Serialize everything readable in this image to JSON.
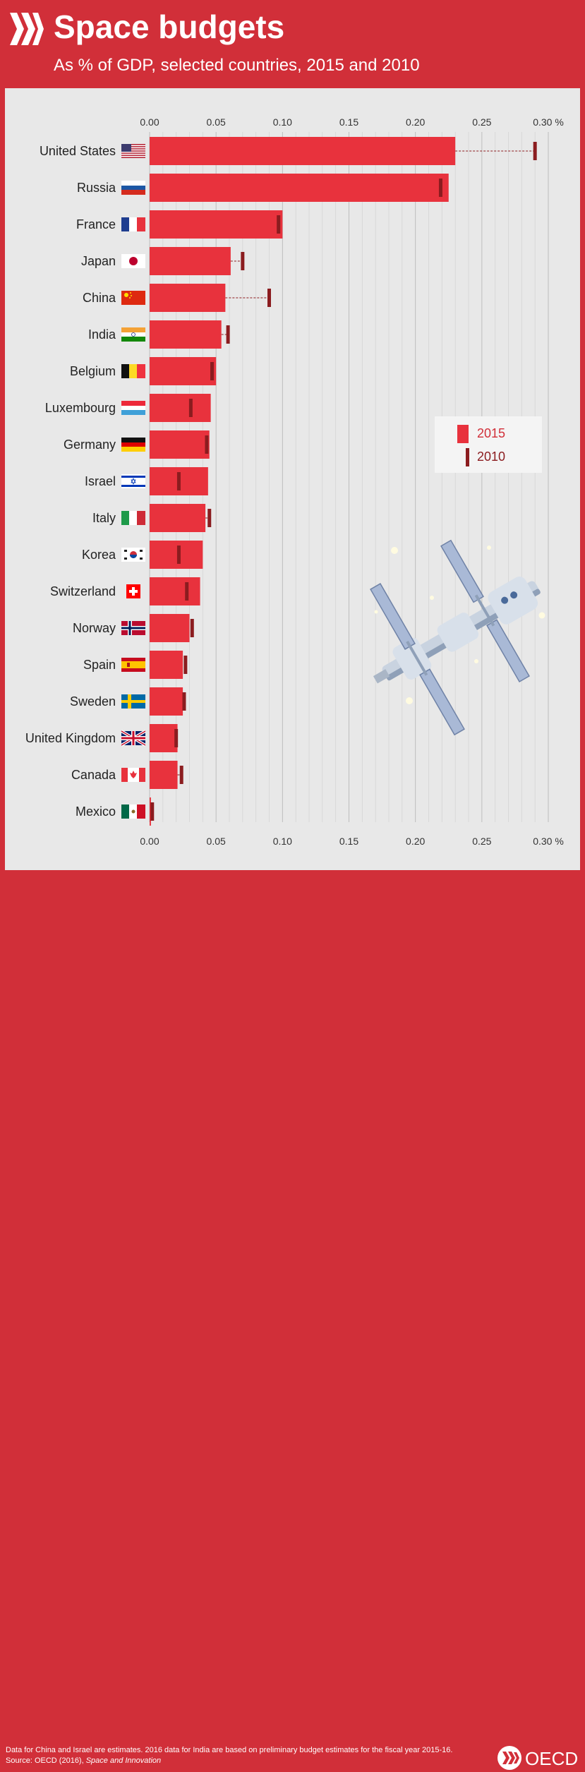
{
  "header": {
    "title": "Space budgets",
    "subtitle": "As % of GDP, selected countries, 2015 and 2010"
  },
  "colors": {
    "brand_red": "#d12f39",
    "bar_2015": "#e8323d",
    "marker_2010": "#8b1c1f",
    "panel_bg": "#e8e8e8"
  },
  "legend": {
    "item_2015": "2015",
    "item_2010": "2010"
  },
  "footer": {
    "note_line1": "Data for China and Israel are estimates. 2016 data for India are based on preliminary budget estimates for the fiscal year 2015-16.",
    "source_prefix": "Source: OECD (2016), ",
    "source_title": "Space and Innovation",
    "logo_text": "OECD"
  },
  "chart_data": {
    "type": "bar",
    "orientation": "horizontal",
    "title": "Space budgets",
    "subtitle": "As % of GDP, selected countries, 2015 and 2010",
    "tick_labels": [
      "0.00",
      "0.05",
      "0.10",
      "0.15",
      "0.20",
      "0.25",
      "0.30 %"
    ],
    "xlim": [
      0,
      0.3
    ],
    "grid": true,
    "legend_position": "right",
    "categories": [
      "United States",
      "Russia",
      "France",
      "Japan",
      "China",
      "India",
      "Belgium",
      "Luxembourg",
      "Germany",
      "Israel",
      "Italy",
      "Korea",
      "Switzerland",
      "Norway",
      "Spain",
      "Sweden",
      "United Kingdom",
      "Canada",
      "Mexico"
    ],
    "series": [
      {
        "name": "2015",
        "values": [
          0.23,
          0.225,
          0.1,
          0.061,
          0.057,
          0.054,
          0.05,
          0.046,
          0.045,
          0.044,
          0.042,
          0.04,
          0.038,
          0.03,
          0.025,
          0.025,
          0.021,
          0.021,
          0.001
        ]
      },
      {
        "name": "2010",
        "values": [
          0.29,
          0.219,
          0.097,
          0.07,
          0.09,
          0.059,
          0.047,
          0.031,
          0.043,
          0.022,
          0.045,
          0.022,
          0.028,
          0.032,
          0.027,
          0.026,
          0.02,
          0.024,
          0.002
        ]
      }
    ],
    "flags": [
      "us-flag-icon",
      "russia-flag-icon",
      "france-flag-icon",
      "japan-flag-icon",
      "china-flag-icon",
      "india-flag-icon",
      "belgium-flag-icon",
      "luxembourg-flag-icon",
      "germany-flag-icon",
      "israel-flag-icon",
      "italy-flag-icon",
      "korea-flag-icon",
      "switzerland-flag-icon",
      "norway-flag-icon",
      "spain-flag-icon",
      "sweden-flag-icon",
      "uk-flag-icon",
      "canada-flag-icon",
      "mexico-flag-icon"
    ]
  }
}
